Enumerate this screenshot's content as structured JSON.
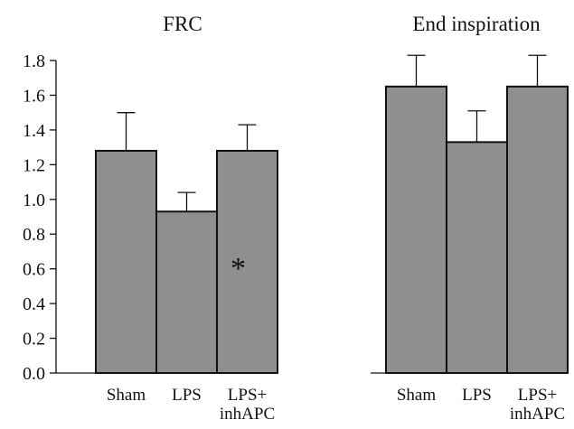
{
  "chart_data": [
    {
      "type": "bar",
      "title": "FRC",
      "categories": [
        [
          "Sham"
        ],
        [
          "LPS"
        ],
        [
          "LPS+",
          "inhAPC"
        ]
      ],
      "values": [
        1.28,
        0.93,
        1.28
      ],
      "error_upper": [
        1.5,
        1.04,
        1.43
      ],
      "annotations": [
        {
          "category_index": 2,
          "text": "*"
        }
      ],
      "ylim": [
        0.0,
        1.8
      ],
      "yticks": [
        "0.0",
        "0.2",
        "0.4",
        "0.6",
        "0.8",
        "1.0",
        "1.2",
        "1.4",
        "1.6",
        "1.8"
      ],
      "xlabel": "",
      "ylabel": "",
      "grid": false,
      "bar_color": "#8f8f8f"
    },
    {
      "type": "bar",
      "title": "End inspiration",
      "categories": [
        [
          "Sham"
        ],
        [
          "LPS"
        ],
        [
          "LPS+",
          "inhAPC"
        ]
      ],
      "values": [
        1.65,
        1.33,
        1.65
      ],
      "error_upper": [
        1.83,
        1.51,
        1.83
      ],
      "annotations": [],
      "ylim": [
        0.0,
        1.8
      ],
      "yticks": [],
      "xlabel": "",
      "ylabel": "",
      "grid": false,
      "bar_color": "#8f8f8f"
    }
  ]
}
